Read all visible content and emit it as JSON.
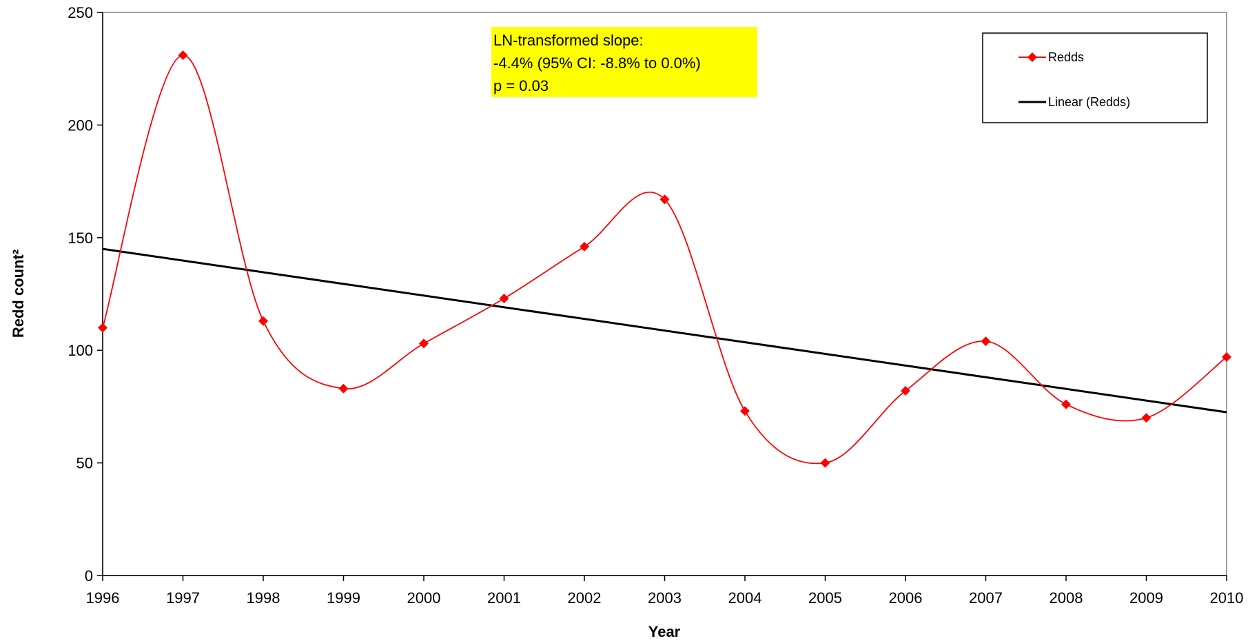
{
  "chart_data": {
    "type": "line",
    "title": "",
    "xlabel": "Year",
    "ylabel": "Redd count²",
    "xlim": [
      1996,
      2010
    ],
    "ylim": [
      0,
      250
    ],
    "x_ticks": [
      "1996",
      "1997",
      "1998",
      "1999",
      "2000",
      "2001",
      "2002",
      "2003",
      "2004",
      "2005",
      "2006",
      "2007",
      "2008",
      "2009",
      "2010"
    ],
    "y_ticks": [
      "0",
      "50",
      "100",
      "150",
      "200",
      "250"
    ],
    "grid": false,
    "series": [
      {
        "name": "Redds",
        "kind": "smoothed line with diamond markers",
        "color": "#ff0000",
        "x": [
          1996,
          1997,
          1998,
          1999,
          2000,
          2001,
          2002,
          2003,
          2004,
          2005,
          2006,
          2007,
          2008,
          2009,
          2010
        ],
        "y": [
          110,
          231,
          113,
          83,
          103,
          123,
          146,
          167,
          73,
          50,
          82,
          104,
          76,
          70,
          97
        ]
      },
      {
        "name": "Linear (Redds)",
        "kind": "linear trendline",
        "color": "#000000",
        "x": [
          1996,
          2010
        ],
        "y": [
          145,
          72.5
        ]
      }
    ],
    "legend": {
      "placement": "top-right",
      "entries": [
        "Redds",
        "Linear (Redds)"
      ]
    },
    "annotation": {
      "lines": [
        "LN-transformed  slope:",
        "-4.4% (95% CI:  -8.8%  to 0.0%)",
        "p = 0.03"
      ],
      "background": "#ffff00"
    }
  }
}
